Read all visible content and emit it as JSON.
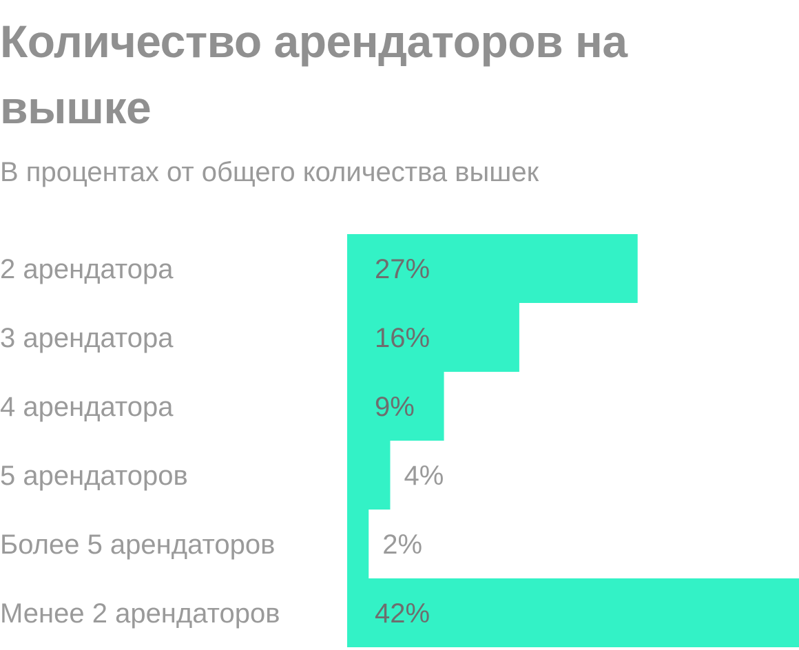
{
  "colors": {
    "bar": "#33f2c6",
    "text_muted": "#9a9a9a",
    "title": "#909090",
    "label_on_bar": "#6e6e6e",
    "label_off_bar": "#9a9a9a"
  },
  "chart_data": {
    "type": "bar",
    "orientation": "horizontal",
    "title": "Количество арендаторов на вышке",
    "subtitle": "В процентах от общего количества вышек",
    "categories": [
      "2 арендатора",
      "3 арендатора",
      "4 арендатора",
      "5 арендаторов",
      "Более 5 арендаторов",
      "Менее 2 арендаторов"
    ],
    "values": [
      27,
      16,
      9,
      4,
      2,
      42
    ],
    "value_labels": [
      "27%",
      "16%",
      "9%",
      "4%",
      "2%",
      "42%"
    ],
    "xlim": [
      0,
      42
    ],
    "grid": false,
    "legend": "none"
  }
}
